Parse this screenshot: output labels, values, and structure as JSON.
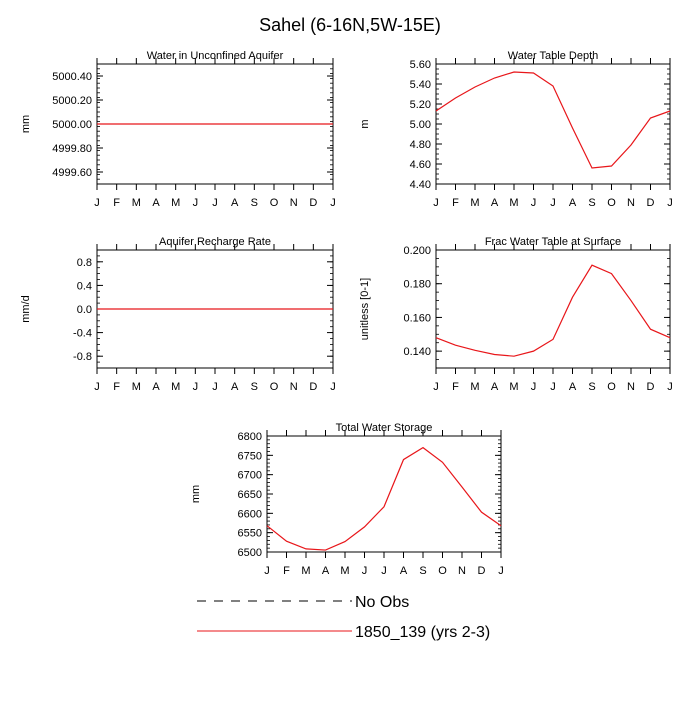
{
  "page_title": "Sahel (6-16N,5W-15E)",
  "line_color": "#e8161a",
  "axis_color": "#000000",
  "months": [
    "J",
    "F",
    "M",
    "A",
    "M",
    "J",
    "J",
    "A",
    "S",
    "O",
    "N",
    "D",
    "J"
  ],
  "legend": {
    "obs_label": "No Obs",
    "model_label": "1850_139 (yrs 2-3)"
  },
  "chart_data": [
    {
      "type": "line",
      "title": "Water in Unconfined Aquifer",
      "ylabel": "mm",
      "ylim": [
        4999.5,
        5000.5
      ],
      "yticks": [
        4999.6,
        4999.8,
        5000.0,
        5000.2,
        5000.4
      ],
      "ytick_labels": [
        "4999.60",
        "4999.80",
        "5000.00",
        "5000.20",
        "5000.40"
      ],
      "yminor_step": 0.04,
      "x": [
        0,
        1,
        2,
        3,
        4,
        5,
        6,
        7,
        8,
        9,
        10,
        11,
        12
      ],
      "values": [
        5000,
        5000,
        5000,
        5000,
        5000,
        5000,
        5000,
        5000,
        5000,
        5000,
        5000,
        5000,
        5000
      ]
    },
    {
      "type": "line",
      "title": "Water Table Depth",
      "ylabel": "m",
      "ylim": [
        4.4,
        5.6
      ],
      "yticks": [
        4.4,
        4.6,
        4.8,
        5.0,
        5.2,
        5.4,
        5.6
      ],
      "ytick_labels": [
        "4.40",
        "4.60",
        "4.80",
        "5.00",
        "5.20",
        "5.40",
        "5.60"
      ],
      "yminor_step": 0.05,
      "x": [
        0,
        1,
        2,
        3,
        4,
        5,
        6,
        7,
        8,
        9,
        10,
        11,
        12
      ],
      "values": [
        5.13,
        5.26,
        5.37,
        5.46,
        5.52,
        5.51,
        5.38,
        4.96,
        4.56,
        4.58,
        4.79,
        5.06,
        5.13
      ]
    },
    {
      "type": "line",
      "title": "Aquifer Recharge Rate",
      "ylabel": "mm/d",
      "ylim": [
        -1.0,
        1.0
      ],
      "yticks": [
        -0.8,
        -0.4,
        0.0,
        0.4,
        0.8
      ],
      "ytick_labels": [
        "-0.8",
        "-0.4",
        "0.0",
        "0.4",
        "0.8"
      ],
      "yminor_step": 0.1,
      "x": [
        0,
        1,
        2,
        3,
        4,
        5,
        6,
        7,
        8,
        9,
        10,
        11,
        12
      ],
      "values": [
        0,
        0,
        0,
        0,
        0,
        0,
        0,
        0,
        0,
        0,
        0,
        0,
        0
      ]
    },
    {
      "type": "line",
      "title": "Frac Water Table at Surface",
      "ylabel": "unitless [0-1]",
      "ylim": [
        0.13,
        0.2
      ],
      "yticks": [
        0.14,
        0.16,
        0.18,
        0.2
      ],
      "ytick_labels": [
        "0.140",
        "0.160",
        "0.180",
        "0.200"
      ],
      "yminor_step": 0.005,
      "x": [
        0,
        1,
        2,
        3,
        4,
        5,
        6,
        7,
        8,
        9,
        10,
        11,
        12
      ],
      "values": [
        0.148,
        0.1435,
        0.1405,
        0.138,
        0.137,
        0.14,
        0.147,
        0.172,
        0.191,
        0.186,
        0.17,
        0.153,
        0.148
      ]
    },
    {
      "type": "line",
      "title": "Total Water Storage",
      "ylabel": "mm",
      "ylim": [
        6500,
        6800
      ],
      "yticks": [
        6500,
        6550,
        6600,
        6650,
        6700,
        6750,
        6800
      ],
      "ytick_labels": [
        "6500",
        "6550",
        "6600",
        "6650",
        "6700",
        "6750",
        "6800"
      ],
      "yminor_step": 10,
      "x": [
        0,
        1,
        2,
        3,
        4,
        5,
        6,
        7,
        8,
        9,
        10,
        11,
        12
      ],
      "values": [
        6568,
        6528,
        6508,
        6505,
        6527,
        6565,
        6617,
        6739,
        6770,
        6732,
        6668,
        6603,
        6568
      ]
    }
  ]
}
